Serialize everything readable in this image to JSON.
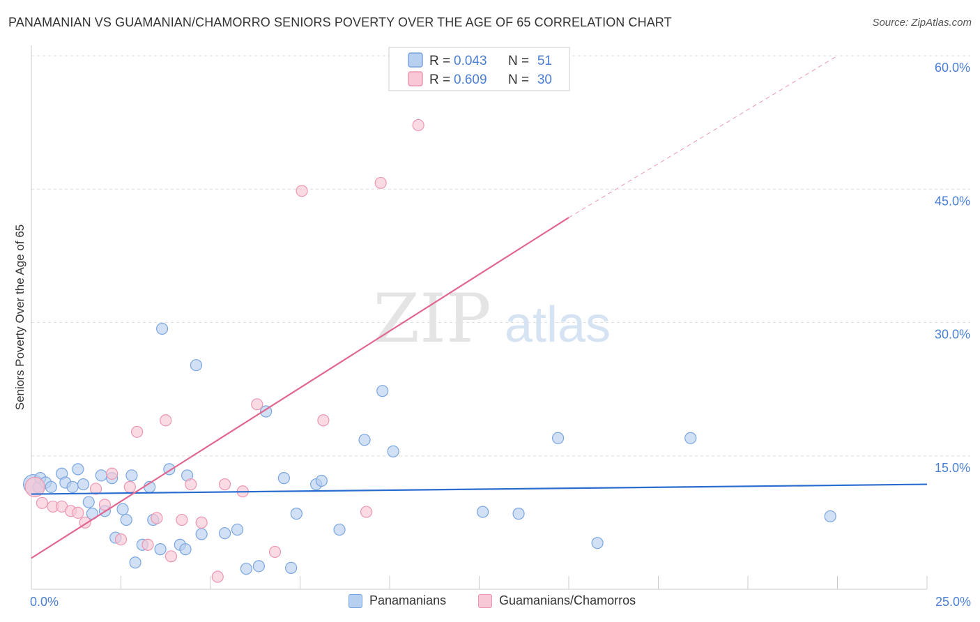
{
  "title": "PANAMANIAN VS GUAMANIAN/CHAMORRO SENIORS POVERTY OVER THE AGE OF 65 CORRELATION CHART",
  "source": "Source: ZipAtlas.com",
  "watermark": {
    "zip": "ZIP",
    "atlas": "atlas"
  },
  "colors": {
    "blue_fill": "#b8d0f0",
    "blue_stroke": "#7aa6e0",
    "blue_line": "#2a6dd0",
    "pink_fill": "#f8c8d6",
    "pink_stroke": "#ec97b1",
    "pink_line": "#e0668f",
    "grid": "#dddddd",
    "tick_text": "#4a7fd4"
  },
  "chart_data": {
    "type": "scatter",
    "xlabel": "",
    "ylabel": "Seniors Poverty Over the Age of 65",
    "xlim": [
      0,
      25
    ],
    "ylim": [
      0,
      60
    ],
    "x_tick_labels": [
      "0.0%",
      "25.0%"
    ],
    "y_ticks": [
      15,
      30,
      45,
      60
    ],
    "y_tick_labels": [
      "15.0%",
      "30.0%",
      "45.0%",
      "60.0%"
    ],
    "grid": true,
    "legend": {
      "position": "top-center",
      "entries": [
        {
          "r_label": "R = ",
          "r_value": "0.043",
          "n_label": "N = ",
          "n_value": "51"
        },
        {
          "r_label": "R = ",
          "r_value": "0.609",
          "n_label": "N = ",
          "n_value": "30"
        }
      ]
    },
    "series": [
      {
        "name": "Panamanians",
        "color": "blue",
        "trend": {
          "x0": 0,
          "y0": 10.7,
          "x1": 25,
          "y1": 11.8,
          "dashed_to": null
        },
        "points": [
          [
            0.05,
            11.8
          ],
          [
            0.2,
            11.5
          ],
          [
            0.25,
            12.5
          ],
          [
            0.4,
            12.0
          ],
          [
            0.55,
            11.5
          ],
          [
            0.85,
            13.0
          ],
          [
            0.95,
            12.0
          ],
          [
            1.15,
            11.5
          ],
          [
            1.3,
            13.5
          ],
          [
            1.45,
            11.8
          ],
          [
            1.6,
            9.8
          ],
          [
            1.7,
            8.5
          ],
          [
            1.95,
            12.8
          ],
          [
            2.05,
            8.8
          ],
          [
            2.25,
            12.5
          ],
          [
            2.35,
            5.8
          ],
          [
            2.55,
            9.0
          ],
          [
            2.65,
            7.8
          ],
          [
            2.8,
            12.8
          ],
          [
            2.9,
            3.0
          ],
          [
            3.1,
            5.0
          ],
          [
            3.3,
            11.5
          ],
          [
            3.4,
            7.8
          ],
          [
            3.6,
            4.5
          ],
          [
            3.65,
            29.3
          ],
          [
            3.85,
            13.5
          ],
          [
            4.15,
            5.0
          ],
          [
            4.3,
            4.5
          ],
          [
            4.35,
            12.8
          ],
          [
            4.6,
            25.2
          ],
          [
            4.75,
            6.2
          ],
          [
            5.4,
            6.3
          ],
          [
            5.75,
            6.7
          ],
          [
            6.0,
            2.3
          ],
          [
            6.35,
            2.6
          ],
          [
            6.55,
            20.0
          ],
          [
            7.05,
            12.5
          ],
          [
            7.25,
            2.4
          ],
          [
            7.4,
            8.5
          ],
          [
            7.95,
            11.8
          ],
          [
            8.1,
            12.2
          ],
          [
            8.6,
            6.7
          ],
          [
            9.3,
            16.8
          ],
          [
            9.8,
            22.3
          ],
          [
            10.1,
            15.5
          ],
          [
            12.6,
            8.7
          ],
          [
            13.6,
            8.5
          ],
          [
            14.7,
            17.0
          ],
          [
            15.8,
            5.2
          ],
          [
            18.4,
            17.0
          ],
          [
            22.3,
            8.2
          ]
        ]
      },
      {
        "name": "Guamanians/Chamorros",
        "color": "pink",
        "trend": {
          "x0": 0,
          "y0": 3.5,
          "x1": 15,
          "y1": 41.8,
          "dashed_to": {
            "x": 22.5,
            "y": 60
          }
        },
        "points": [
          [
            0.1,
            11.5
          ],
          [
            0.3,
            9.7
          ],
          [
            0.6,
            9.3
          ],
          [
            0.85,
            9.3
          ],
          [
            1.1,
            8.8
          ],
          [
            1.3,
            8.6
          ],
          [
            1.5,
            7.5
          ],
          [
            1.8,
            11.3
          ],
          [
            2.05,
            9.5
          ],
          [
            2.25,
            13.0
          ],
          [
            2.5,
            5.6
          ],
          [
            2.75,
            11.5
          ],
          [
            2.95,
            17.7
          ],
          [
            3.25,
            5.0
          ],
          [
            3.5,
            8.0
          ],
          [
            3.75,
            19.0
          ],
          [
            3.9,
            3.7
          ],
          [
            4.2,
            7.8
          ],
          [
            4.45,
            11.8
          ],
          [
            4.75,
            7.5
          ],
          [
            5.2,
            1.4
          ],
          [
            5.4,
            11.8
          ],
          [
            5.9,
            11.0
          ],
          [
            6.3,
            20.8
          ],
          [
            6.8,
            4.2
          ],
          [
            7.55,
            44.8
          ],
          [
            8.15,
            19.0
          ],
          [
            9.35,
            8.7
          ],
          [
            9.75,
            45.7
          ],
          [
            10.8,
            52.2
          ]
        ]
      }
    ]
  },
  "bottom_legend": [
    {
      "label": "Panamanians"
    },
    {
      "label": "Guamanians/Chamorros"
    }
  ]
}
